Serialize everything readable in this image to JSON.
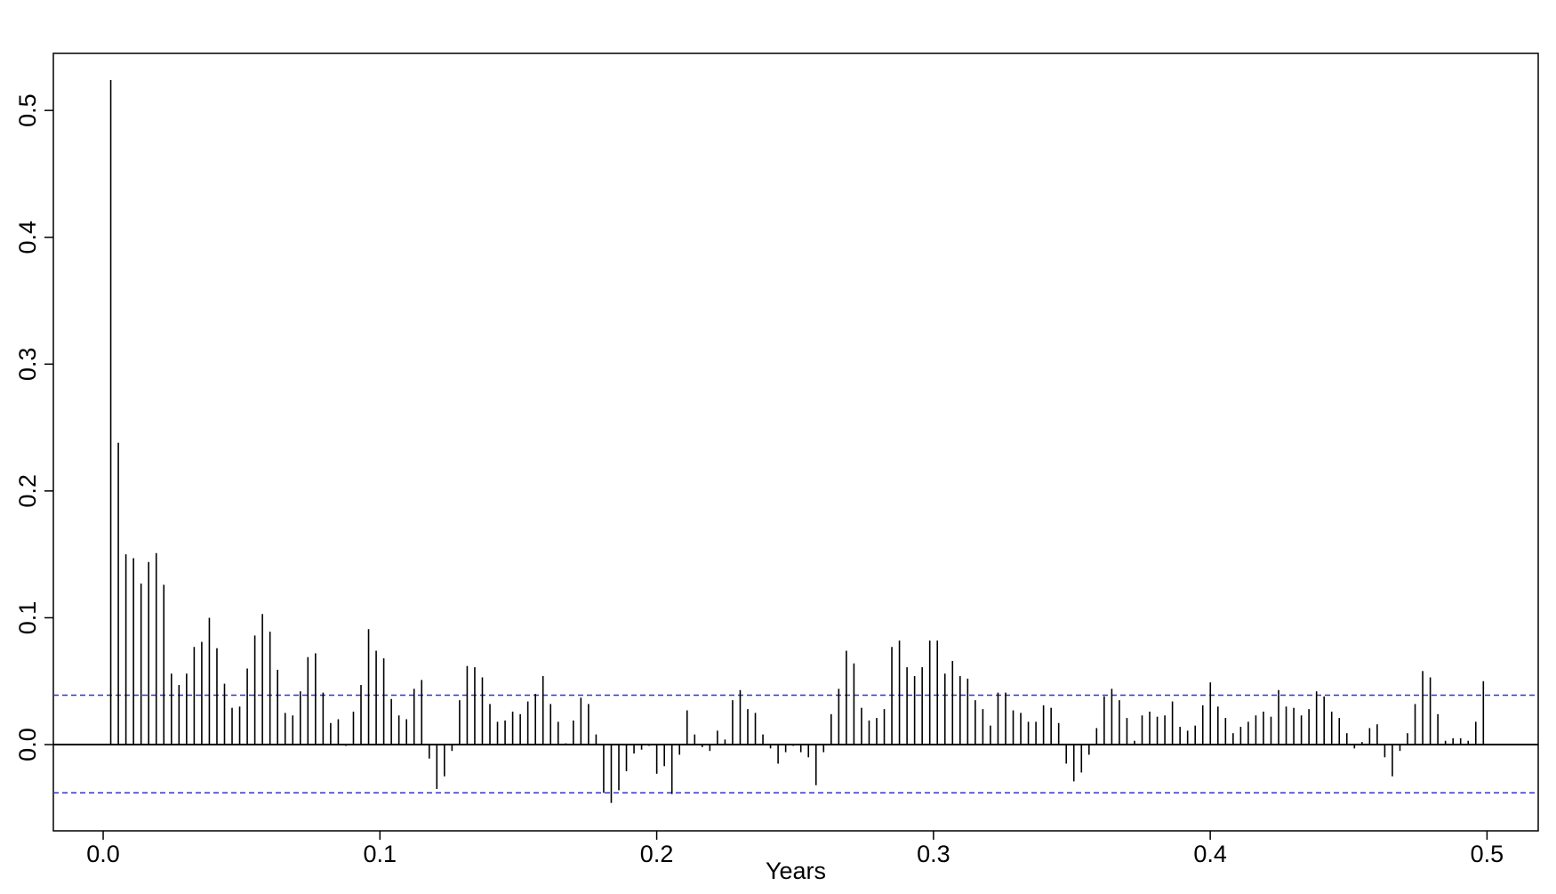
{
  "chart_data": {
    "type": "bar",
    "subtype": "autocorrelation",
    "title": "",
    "xlabel": "Years",
    "ylabel": "",
    "xlim": [
      -0.018,
      0.5185
    ],
    "ylim": [
      -0.068,
      0.545
    ],
    "xticks": [
      0.0,
      0.1,
      0.2,
      0.3,
      0.4,
      0.5
    ],
    "xtick_labels": [
      "0.0",
      "0.1",
      "0.2",
      "0.3",
      "0.4",
      "0.5"
    ],
    "yticks": [
      0.0,
      0.1,
      0.2,
      0.3,
      0.4,
      0.5
    ],
    "ytick_labels": [
      "0.0",
      "0.1",
      "0.2",
      "0.3",
      "0.4",
      "0.5"
    ],
    "lag_step": 0.00274,
    "first_lag": 0.00274,
    "values": [
      0.524,
      0.238,
      0.15,
      0.147,
      0.127,
      0.144,
      0.151,
      0.126,
      0.056,
      0.047,
      0.056,
      0.077,
      0.081,
      0.1,
      0.076,
      0.048,
      0.029,
      0.03,
      0.06,
      0.086,
      0.103,
      0.089,
      0.059,
      0.025,
      0.023,
      0.042,
      0.069,
      0.072,
      0.041,
      0.017,
      0.02,
      -0.001,
      0.026,
      0.047,
      0.091,
      0.074,
      0.068,
      0.036,
      0.023,
      0.02,
      0.044,
      0.051,
      -0.011,
      -0.035,
      -0.025,
      -0.005,
      0.035,
      0.062,
      0.061,
      0.053,
      0.032,
      0.018,
      0.019,
      0.026,
      0.024,
      0.034,
      0.04,
      0.054,
      0.032,
      0.018,
      0.001,
      0.019,
      0.037,
      0.032,
      0.008,
      -0.038,
      -0.046,
      -0.036,
      -0.021,
      -0.007,
      -0.004,
      -0.001,
      -0.023,
      -0.017,
      -0.039,
      -0.008,
      0.027,
      0.008,
      -0.002,
      -0.005,
      0.011,
      0.004,
      0.035,
      0.043,
      0.028,
      0.025,
      0.008,
      -0.003,
      -0.015,
      -0.006,
      -0.001,
      -0.006,
      -0.01,
      -0.032,
      -0.006,
      0.024,
      0.044,
      0.074,
      0.064,
      0.029,
      0.019,
      0.021,
      0.028,
      0.077,
      0.082,
      0.061,
      0.054,
      0.061,
      0.082,
      0.082,
      0.056,
      0.066,
      0.054,
      0.052,
      0.035,
      0.028,
      0.015,
      0.041,
      0.041,
      0.027,
      0.025,
      0.018,
      0.018,
      0.031,
      0.029,
      0.017,
      -0.015,
      -0.029,
      -0.022,
      -0.008,
      0.013,
      0.038,
      0.044,
      0.035,
      0.021,
      0.003,
      0.023,
      0.026,
      0.022,
      0.023,
      0.034,
      0.014,
      0.011,
      0.015,
      0.031,
      0.049,
      0.03,
      0.021,
      0.009,
      0.014,
      0.018,
      0.023,
      0.026,
      0.022,
      0.043,
      0.03,
      0.029,
      0.023,
      0.028,
      0.042,
      0.038,
      0.026,
      0.021,
      0.009,
      -0.003,
      0.002,
      0.013,
      0.016,
      -0.01,
      -0.025,
      -0.005,
      0.009,
      0.032,
      0.058,
      0.053,
      0.024,
      0.003,
      0.005,
      0.005,
      0.003,
      0.018,
      0.05
    ],
    "zero_line": 0.0,
    "confidence_bounds": [
      0.039,
      -0.038
    ],
    "colors": {
      "bars": "#000000",
      "zero_line": "#000000",
      "confidence_bounds": "#3333cc",
      "frame": "#000000"
    },
    "grid": false,
    "legend": "none"
  }
}
